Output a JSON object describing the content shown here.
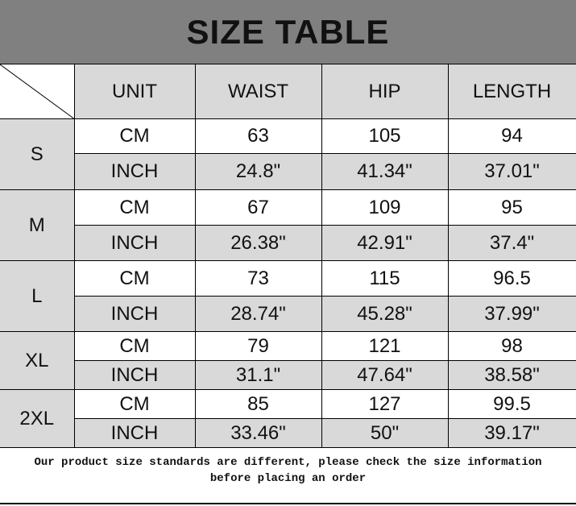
{
  "title": "SIZE TABLE",
  "headers": [
    "UNIT",
    "WAIST",
    "HIP",
    "LENGTH"
  ],
  "sizes": [
    {
      "size": "S",
      "rows": [
        {
          "unit": "CM",
          "values": [
            "63",
            "105",
            "94"
          ]
        },
        {
          "unit": "INCH",
          "values": [
            "24.8\"",
            "41.34\"",
            "37.01\""
          ]
        }
      ]
    },
    {
      "size": "M",
      "rows": [
        {
          "unit": "CM",
          "values": [
            "67",
            "109",
            "95"
          ]
        },
        {
          "unit": "INCH",
          "values": [
            "26.38\"",
            "42.91\"",
            "37.4\""
          ]
        }
      ]
    },
    {
      "size": "L",
      "rows": [
        {
          "unit": "CM",
          "values": [
            "73",
            "115",
            "96.5"
          ]
        },
        {
          "unit": "INCH",
          "values": [
            "28.74\"",
            "45.28\"",
            "37.99\""
          ]
        }
      ]
    },
    {
      "size": "XL",
      "rows": [
        {
          "unit": "CM",
          "values": [
            "79",
            "121",
            "98"
          ]
        },
        {
          "unit": "INCH",
          "values": [
            "31.1\"",
            "47.64\"",
            "38.58\""
          ]
        }
      ]
    },
    {
      "size": "2XL",
      "rows": [
        {
          "unit": "CM",
          "values": [
            "85",
            "127",
            "99.5"
          ]
        },
        {
          "unit": "INCH",
          "values": [
            "33.46\"",
            "50\"",
            "39.17\""
          ]
        }
      ]
    }
  ],
  "footer": {
    "line1": "Our product size standards are different, please check the size information",
    "line2": "before placing an order"
  }
}
